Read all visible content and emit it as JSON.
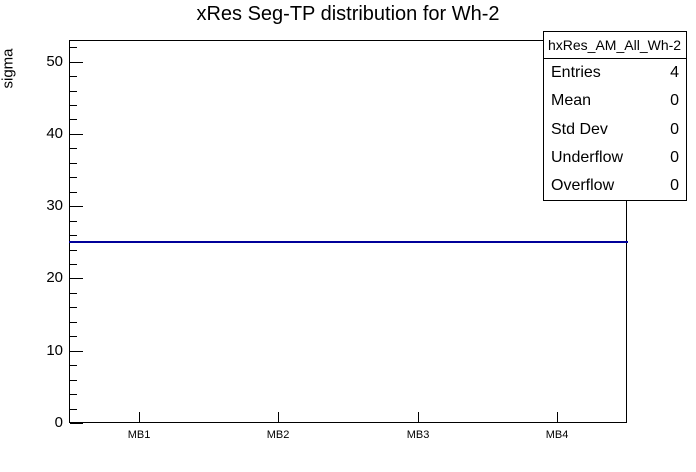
{
  "title": "xRes Seg-TP distribution for Wh-2",
  "y_axis_label": "sigma",
  "stats_box": {
    "header": "hxRes_AM_All_Wh-2",
    "rows": [
      {
        "label": "Entries",
        "value": "4"
      },
      {
        "label": "Mean",
        "value": "0"
      },
      {
        "label": "Std Dev",
        "value": "0"
      },
      {
        "label": "Underflow",
        "value": "0"
      },
      {
        "label": "Overflow",
        "value": "0"
      }
    ]
  },
  "colors": {
    "line": "#000099",
    "axis": "#000000",
    "background": "#ffffff"
  },
  "chart_data": {
    "type": "line",
    "title": "xRes Seg-TP distribution for Wh-2",
    "xlabel": "",
    "ylabel": "sigma",
    "categories": [
      "MB1",
      "MB2",
      "MB3",
      "MB4"
    ],
    "values": [
      25,
      25,
      25,
      25
    ],
    "ylim": [
      0,
      53
    ],
    "y_major_ticks": [
      0,
      10,
      20,
      30,
      40,
      50
    ],
    "y_minor_tick_step": 2,
    "grid": false,
    "legend": "none",
    "annotation": "constant histogram line at sigma = 25 across all four bins"
  }
}
